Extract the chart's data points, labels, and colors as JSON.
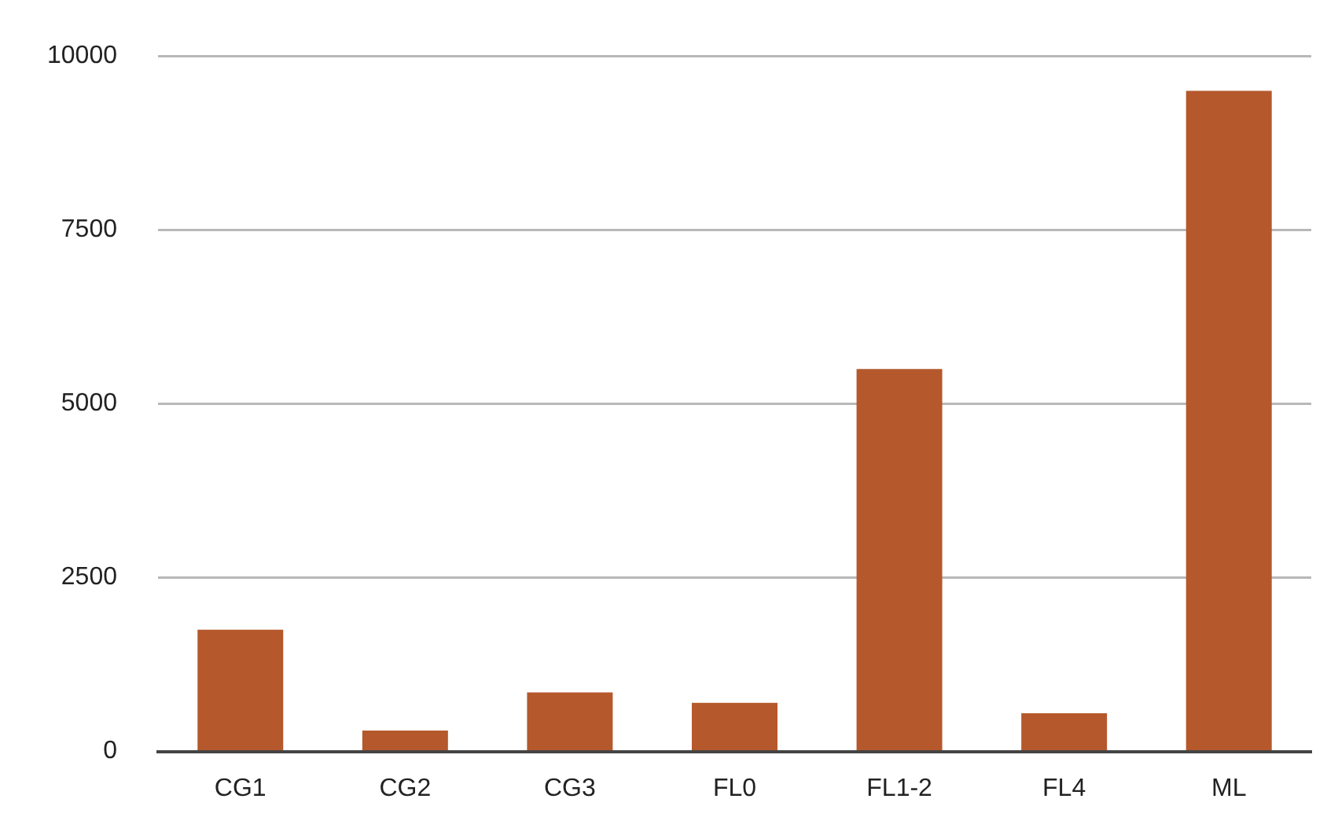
{
  "chart_data": {
    "type": "bar",
    "categories": [
      "CG1",
      "CG2",
      "CG3",
      "FL0",
      "FL1-2",
      "FL4",
      "ML"
    ],
    "values": [
      1750,
      300,
      850,
      700,
      5500,
      550,
      9500
    ],
    "color": "#b5582c",
    "ylim": [
      0,
      10000
    ],
    "yticks": [
      0,
      2500,
      5000,
      7500,
      10000
    ],
    "grid": "y",
    "legend": false
  }
}
